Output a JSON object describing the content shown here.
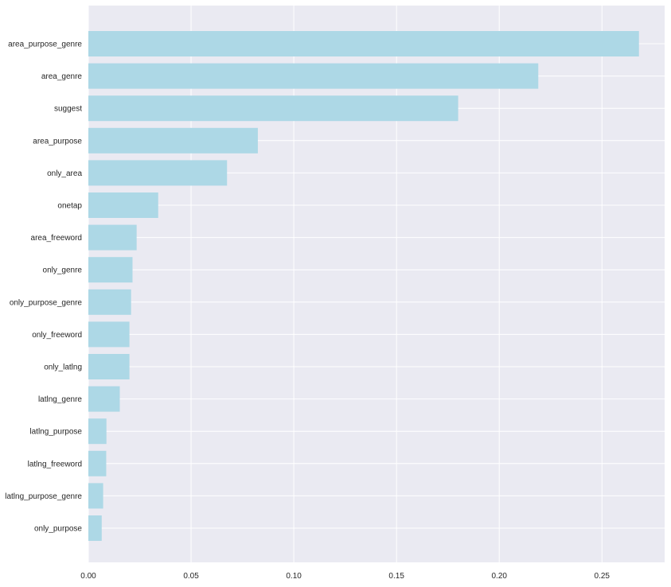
{
  "chart_data": {
    "type": "bar",
    "orientation": "horizontal",
    "title": "",
    "xlabel": "",
    "ylabel": "",
    "categories": [
      "area_purpose_genre",
      "area_genre",
      "suggest",
      "area_purpose",
      "only_area",
      "onetap",
      "area_freeword",
      "only_genre",
      "only_purpose_genre",
      "only_freeword",
      "only_latlng",
      "latlng_genre",
      "latlng_purpose",
      "latlng_freeword",
      "latlng_purpose_genre",
      "only_purpose"
    ],
    "values": [
      0.268,
      0.219,
      0.18,
      0.0825,
      0.0675,
      0.034,
      0.0235,
      0.0215,
      0.0208,
      0.02,
      0.02,
      0.0153,
      0.0088,
      0.0087,
      0.0072,
      0.0065
    ],
    "xlim": [
      0,
      0.2805
    ],
    "xticks": [
      "0.00",
      "0.05",
      "0.10",
      "0.15",
      "0.20",
      "0.25"
    ],
    "xtick_values": [
      0,
      0.05,
      0.1,
      0.15,
      0.2,
      0.25
    ],
    "grid": true,
    "colors": {
      "bar": "#add8e6",
      "plot_background": "#eaeaf2",
      "grid": "#ffffff",
      "text": "#262626"
    }
  }
}
